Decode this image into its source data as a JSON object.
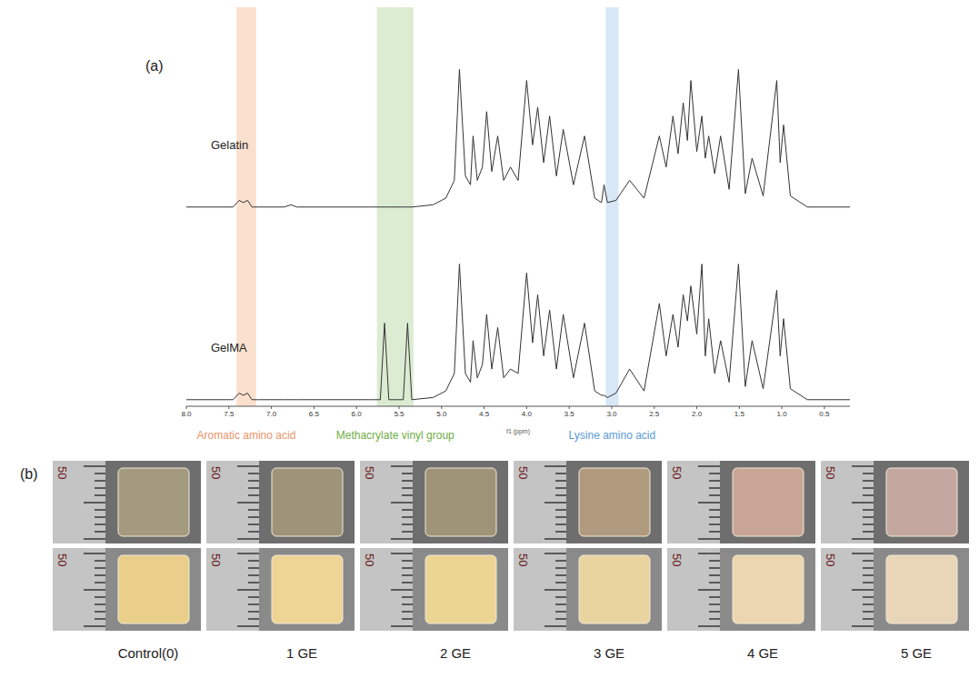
{
  "panel_a": {
    "label": "(a)"
  },
  "chart_data": [
    {
      "type": "line",
      "tick_labels": false,
      "xlim": [
        8.0,
        0.2
      ],
      "ylim": [
        -5,
        90
      ],
      "x": [
        8.0,
        7.45,
        7.38,
        7.33,
        7.28,
        7.23,
        7.15,
        6.85,
        6.77,
        6.7,
        5.85,
        5.72,
        5.67,
        5.62,
        5.45,
        5.4,
        5.35,
        5.1,
        4.95,
        4.85,
        4.79,
        4.72,
        4.66,
        4.63,
        4.58,
        4.52,
        4.47,
        4.41,
        4.34,
        4.27,
        4.19,
        4.1,
        4.0,
        3.93,
        3.87,
        3.8,
        3.73,
        3.65,
        3.57,
        3.45,
        3.32,
        3.2,
        3.12,
        3.09,
        3.05,
        2.95,
        2.79,
        2.62,
        2.44,
        2.36,
        2.28,
        2.22,
        2.16,
        2.11,
        2.07,
        2.0,
        1.94,
        1.9,
        1.86,
        1.79,
        1.72,
        1.62,
        1.51,
        1.43,
        1.35,
        1.22,
        1.06,
        1.02,
        0.98,
        0.9,
        0.7,
        0.2
      ],
      "series": [
        {
          "name": "Gelatin",
          "color": "#333333",
          "values": [
            0,
            0,
            3,
            2,
            3,
            0,
            0,
            0,
            1,
            0,
            0,
            0,
            0,
            0,
            0,
            0,
            0,
            1,
            4,
            12,
            62,
            14,
            10,
            32,
            12,
            18,
            43,
            16,
            32,
            12,
            18,
            12,
            57,
            28,
            45,
            20,
            41,
            14,
            35,
            10,
            32,
            4,
            2,
            10,
            2,
            3,
            12,
            4,
            32,
            18,
            41,
            24,
            47,
            30,
            57,
            25,
            41,
            22,
            32,
            15,
            32,
            8,
            62,
            6,
            22,
            5,
            57,
            20,
            37,
            5,
            0,
            0
          ]
        }
      ]
    },
    {
      "type": "line",
      "tick_labels": "x",
      "xlabel": "f1 (ppm)",
      "xlim": [
        8.0,
        0.2
      ],
      "xticks": [
        {
          "value": 8,
          "label": "8.0"
        },
        7.5,
        {
          "value": 7,
          "label": "7.0"
        },
        6.5,
        {
          "value": 6,
          "label": "6.0"
        },
        5.5,
        {
          "value": 5,
          "label": "5.0"
        },
        4.5,
        {
          "value": 4,
          "label": "4.0"
        },
        3.5,
        {
          "value": 3,
          "label": "3.0"
        },
        2.5,
        {
          "value": 2,
          "label": "2.0"
        },
        1.5,
        {
          "value": 1,
          "label": "1.0"
        },
        0.5
      ],
      "ylim": [
        -3,
        83
      ],
      "x": [
        8.0,
        7.45,
        7.38,
        7.33,
        7.28,
        7.23,
        7.15,
        6.85,
        6.77,
        6.7,
        5.85,
        5.72,
        5.67,
        5.62,
        5.45,
        5.4,
        5.35,
        5.1,
        4.95,
        4.85,
        4.79,
        4.72,
        4.66,
        4.63,
        4.58,
        4.52,
        4.47,
        4.41,
        4.34,
        4.27,
        4.19,
        4.1,
        4.0,
        3.93,
        3.87,
        3.8,
        3.73,
        3.65,
        3.57,
        3.45,
        3.32,
        3.2,
        3.12,
        3.09,
        3.05,
        2.95,
        2.79,
        2.62,
        2.44,
        2.36,
        2.28,
        2.22,
        2.16,
        2.11,
        2.07,
        2.0,
        1.94,
        1.9,
        1.86,
        1.79,
        1.72,
        1.62,
        1.51,
        1.43,
        1.35,
        1.22,
        1.06,
        1.02,
        0.98,
        0.9,
        0.7,
        0.2
      ],
      "series": [
        {
          "name": "GelMA",
          "color": "#333333",
          "values": [
            0,
            0,
            3,
            2,
            3,
            0,
            0,
            0,
            0,
            0,
            0,
            0,
            35,
            0,
            0,
            35,
            0,
            1,
            4,
            12,
            62,
            12,
            8,
            27,
            10,
            16,
            39,
            14,
            33,
            10,
            14,
            12,
            58,
            26,
            48,
            20,
            41,
            14,
            39,
            10,
            35,
            4,
            2,
            2,
            1,
            3,
            14,
            4,
            44,
            20,
            39,
            24,
            48,
            36,
            52,
            30,
            62,
            20,
            37,
            12,
            27,
            8,
            62,
            6,
            27,
            5,
            50,
            20,
            37,
            5,
            0,
            0
          ]
        }
      ],
      "annotations": [
        {
          "text": "Aromatic amino acid",
          "x": [
            7.41,
            7.18
          ],
          "color": "#f8cbad",
          "text_color": "#e9956a"
        },
        {
          "text": "Methacrylate vinyl group",
          "x": [
            5.76,
            5.33
          ],
          "color": "#c5e0b4",
          "text_color": "#70ad47"
        },
        {
          "text": "Lysine amino acid",
          "x": [
            3.07,
            2.92
          ],
          "color": "#bdd7ee",
          "text_color": "#5b9bd5"
        }
      ]
    }
  ],
  "panel_b": {
    "label": "(b)",
    "ruler_label": "50",
    "samples": [
      "Control(0)",
      "1 GE",
      "2 GE",
      "3 GE",
      "4 GE",
      "5 GE"
    ],
    "rows": [
      {
        "colors": [
          "#a39a80",
          "#9e9479",
          "#a09478",
          "#b09b7e",
          "#c9a595",
          "#c4a79f"
        ]
      },
      {
        "colors": [
          "#e9cf8a",
          "#eed596",
          "#ecd493",
          "#e9d4a0",
          "#ecd6b0",
          "#e9d5b8"
        ]
      }
    ]
  }
}
